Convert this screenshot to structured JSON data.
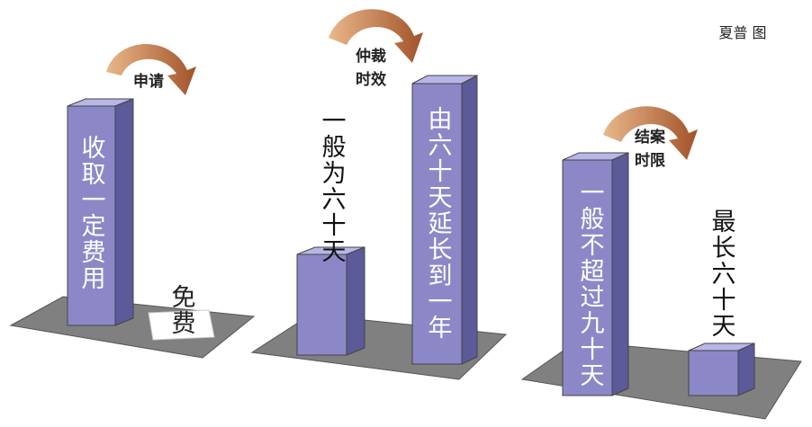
{
  "credit": "夏普 图",
  "groups": [
    {
      "stage": [
        "申请"
      ],
      "left_text": "收取一定费用",
      "right_text": "免费"
    },
    {
      "stage": [
        "仲裁",
        "时效"
      ],
      "left_text": "一般为六十天",
      "right_text": "由六十天延长到一年"
    },
    {
      "stage": [
        "结案",
        "时限"
      ],
      "left_text": "一般不超过九十天",
      "right_text": "最长六十天"
    }
  ]
}
